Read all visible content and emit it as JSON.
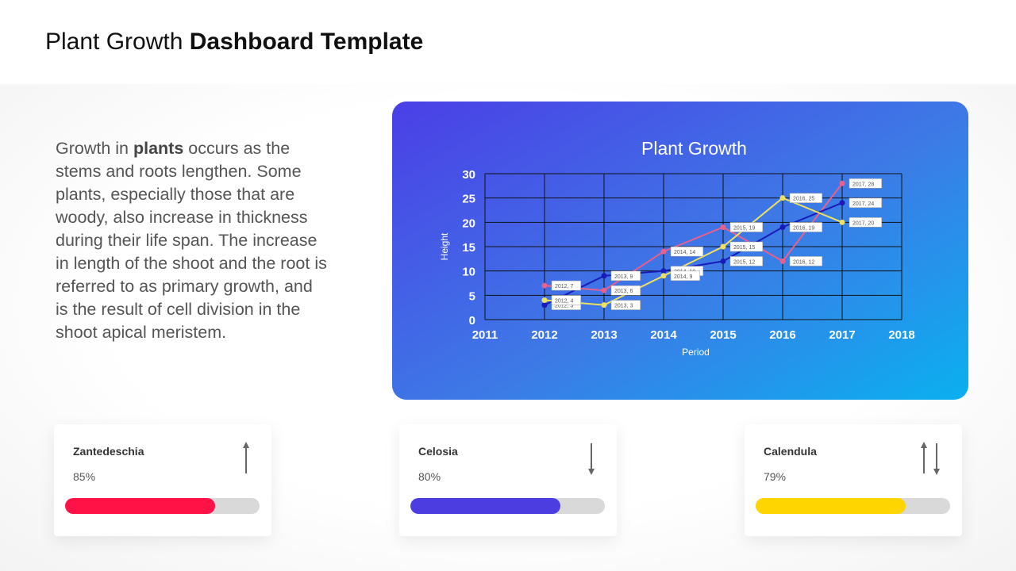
{
  "header": {
    "title_regular": "Plant Growth",
    "title_bold": "Dashboard Template"
  },
  "description": {
    "before": "Growth in ",
    "bold": "plants",
    "after": " occurs as the stems and roots lengthen. Some plants, especially those that are woody, also increase in thickness during their life span. The increase in length of the shoot and the root is referred to as primary growth, and is the result of cell division in the shoot apical meristem."
  },
  "chart_data": {
    "type": "line",
    "title": "Plant Growth",
    "xlabel": "Period",
    "ylabel": "Height",
    "xlim": [
      2011,
      2018
    ],
    "ylim": [
      0,
      30
    ],
    "x_ticks": [
      2011,
      2012,
      2013,
      2014,
      2015,
      2016,
      2017,
      2018
    ],
    "y_ticks": [
      0,
      5,
      10,
      15,
      20,
      25,
      30
    ],
    "grid": true,
    "series": [
      {
        "color": "#e8608c",
        "points": [
          [
            2012,
            7
          ],
          [
            2013,
            6
          ],
          [
            2014,
            14
          ],
          [
            2015,
            19
          ],
          [
            2016,
            12
          ],
          [
            2017,
            28
          ]
        ],
        "labels": [
          "2012, 7",
          "2013, 6",
          "2014, 14",
          "2015, 19",
          "2016, 12",
          "2017, 28"
        ]
      },
      {
        "color": "#1a1ab8",
        "points": [
          [
            2012,
            3
          ],
          [
            2013,
            9
          ],
          [
            2014,
            10
          ],
          [
            2015,
            12
          ],
          [
            2016,
            19
          ],
          [
            2017,
            24
          ]
        ],
        "labels": [
          "2012, 3",
          "2013, 9",
          "2014, 10",
          "2015, 12",
          "2016, 19",
          "2017, 24"
        ]
      },
      {
        "color": "#f0e060",
        "points": [
          [
            2012,
            4
          ],
          [
            2013,
            3
          ],
          [
            2014,
            9
          ],
          [
            2015,
            15
          ],
          [
            2016,
            25
          ],
          [
            2017,
            20
          ]
        ],
        "labels": [
          "2012, 4",
          "2013, 3",
          "2014, 9",
          "2015, 15",
          "2016, 25",
          "2017, 20"
        ]
      }
    ]
  },
  "cards": [
    {
      "name": "Zantedeschia",
      "percent_label": "85%",
      "value": 0.77,
      "color": "#ff1347",
      "icon": "arrow-up-icon"
    },
    {
      "name": "Celosia",
      "percent_label": "80%",
      "value": 0.77,
      "color": "#4b3de0",
      "icon": "arrow-down-icon"
    },
    {
      "name": "Calendula",
      "percent_label": "79%",
      "value": 0.77,
      "color": "#ffd500",
      "icon": "arrows-up-down-icon"
    }
  ]
}
